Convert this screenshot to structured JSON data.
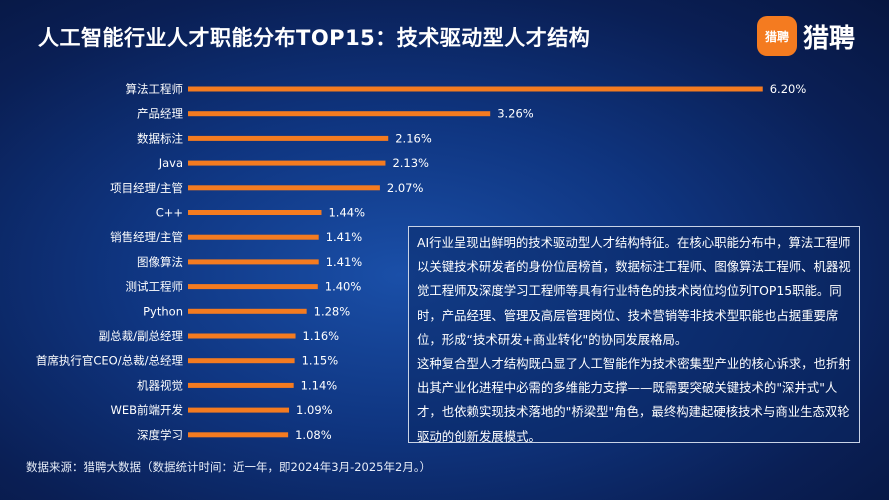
{
  "header": {
    "title": "人工智能行业人才职能分布TOP15：技术驱动型人才结构",
    "logo_badge": "猎聘",
    "logo_text": "猎聘"
  },
  "chart_data": {
    "type": "bar",
    "orientation": "horizontal",
    "categories": [
      "算法工程师",
      "产品经理",
      "数据标注",
      "Java",
      "项目经理/主管",
      "C++",
      "销售经理/主管",
      "图像算法",
      "测试工程师",
      "Python",
      "副总裁/副总经理",
      "首席执行官CEO/总裁/总经理",
      "机器视觉",
      "WEB前端开发",
      "深度学习"
    ],
    "values": [
      6.2,
      3.26,
      2.16,
      2.13,
      2.07,
      1.44,
      1.41,
      1.41,
      1.4,
      1.28,
      1.16,
      1.15,
      1.14,
      1.09,
      1.08
    ],
    "value_labels": [
      "6.20%",
      "3.26%",
      "2.16%",
      "2.13%",
      "2.07%",
      "1.44%",
      "1.41%",
      "1.41%",
      "1.40%",
      "1.28%",
      "1.16%",
      "1.15%",
      "1.14%",
      "1.09%",
      "1.08%"
    ],
    "unit": "%",
    "bar_color": "#f47b20",
    "grid": false
  },
  "textbox": {
    "paragraphs": [
      "AI行业呈现出鲜明的技术驱动型人才结构特征。在核心职能分布中，算法工程师以关键技术研发者的身份位居榜首，数据标注工程师、图像算法工程师、机器视觉工程师及深度学习工程师等具有行业特色的技术岗位均位列TOP15职能。同时，产品经理、管理及高层管理岗位、技术营销等非技术型职能也占据重要席位，形成“技术研发+商业转化\"的协同发展格局。",
      "这种复合型人才结构既凸显了人工智能作为技术密集型产业的核心诉求，也折射出其产业化进程中必需的多维能力支撑——既需要突破关键技术的\"深井式\"人才，也依赖实现技术落地的\"桥梁型\"角色，最终构建起硬核技术与商业生态双轮驱动的创新发展模式。"
    ]
  },
  "footer": {
    "source": "数据来源：猎聘大数据（数据统计时间：近一年，即2024年3月-2025年2月。）"
  }
}
